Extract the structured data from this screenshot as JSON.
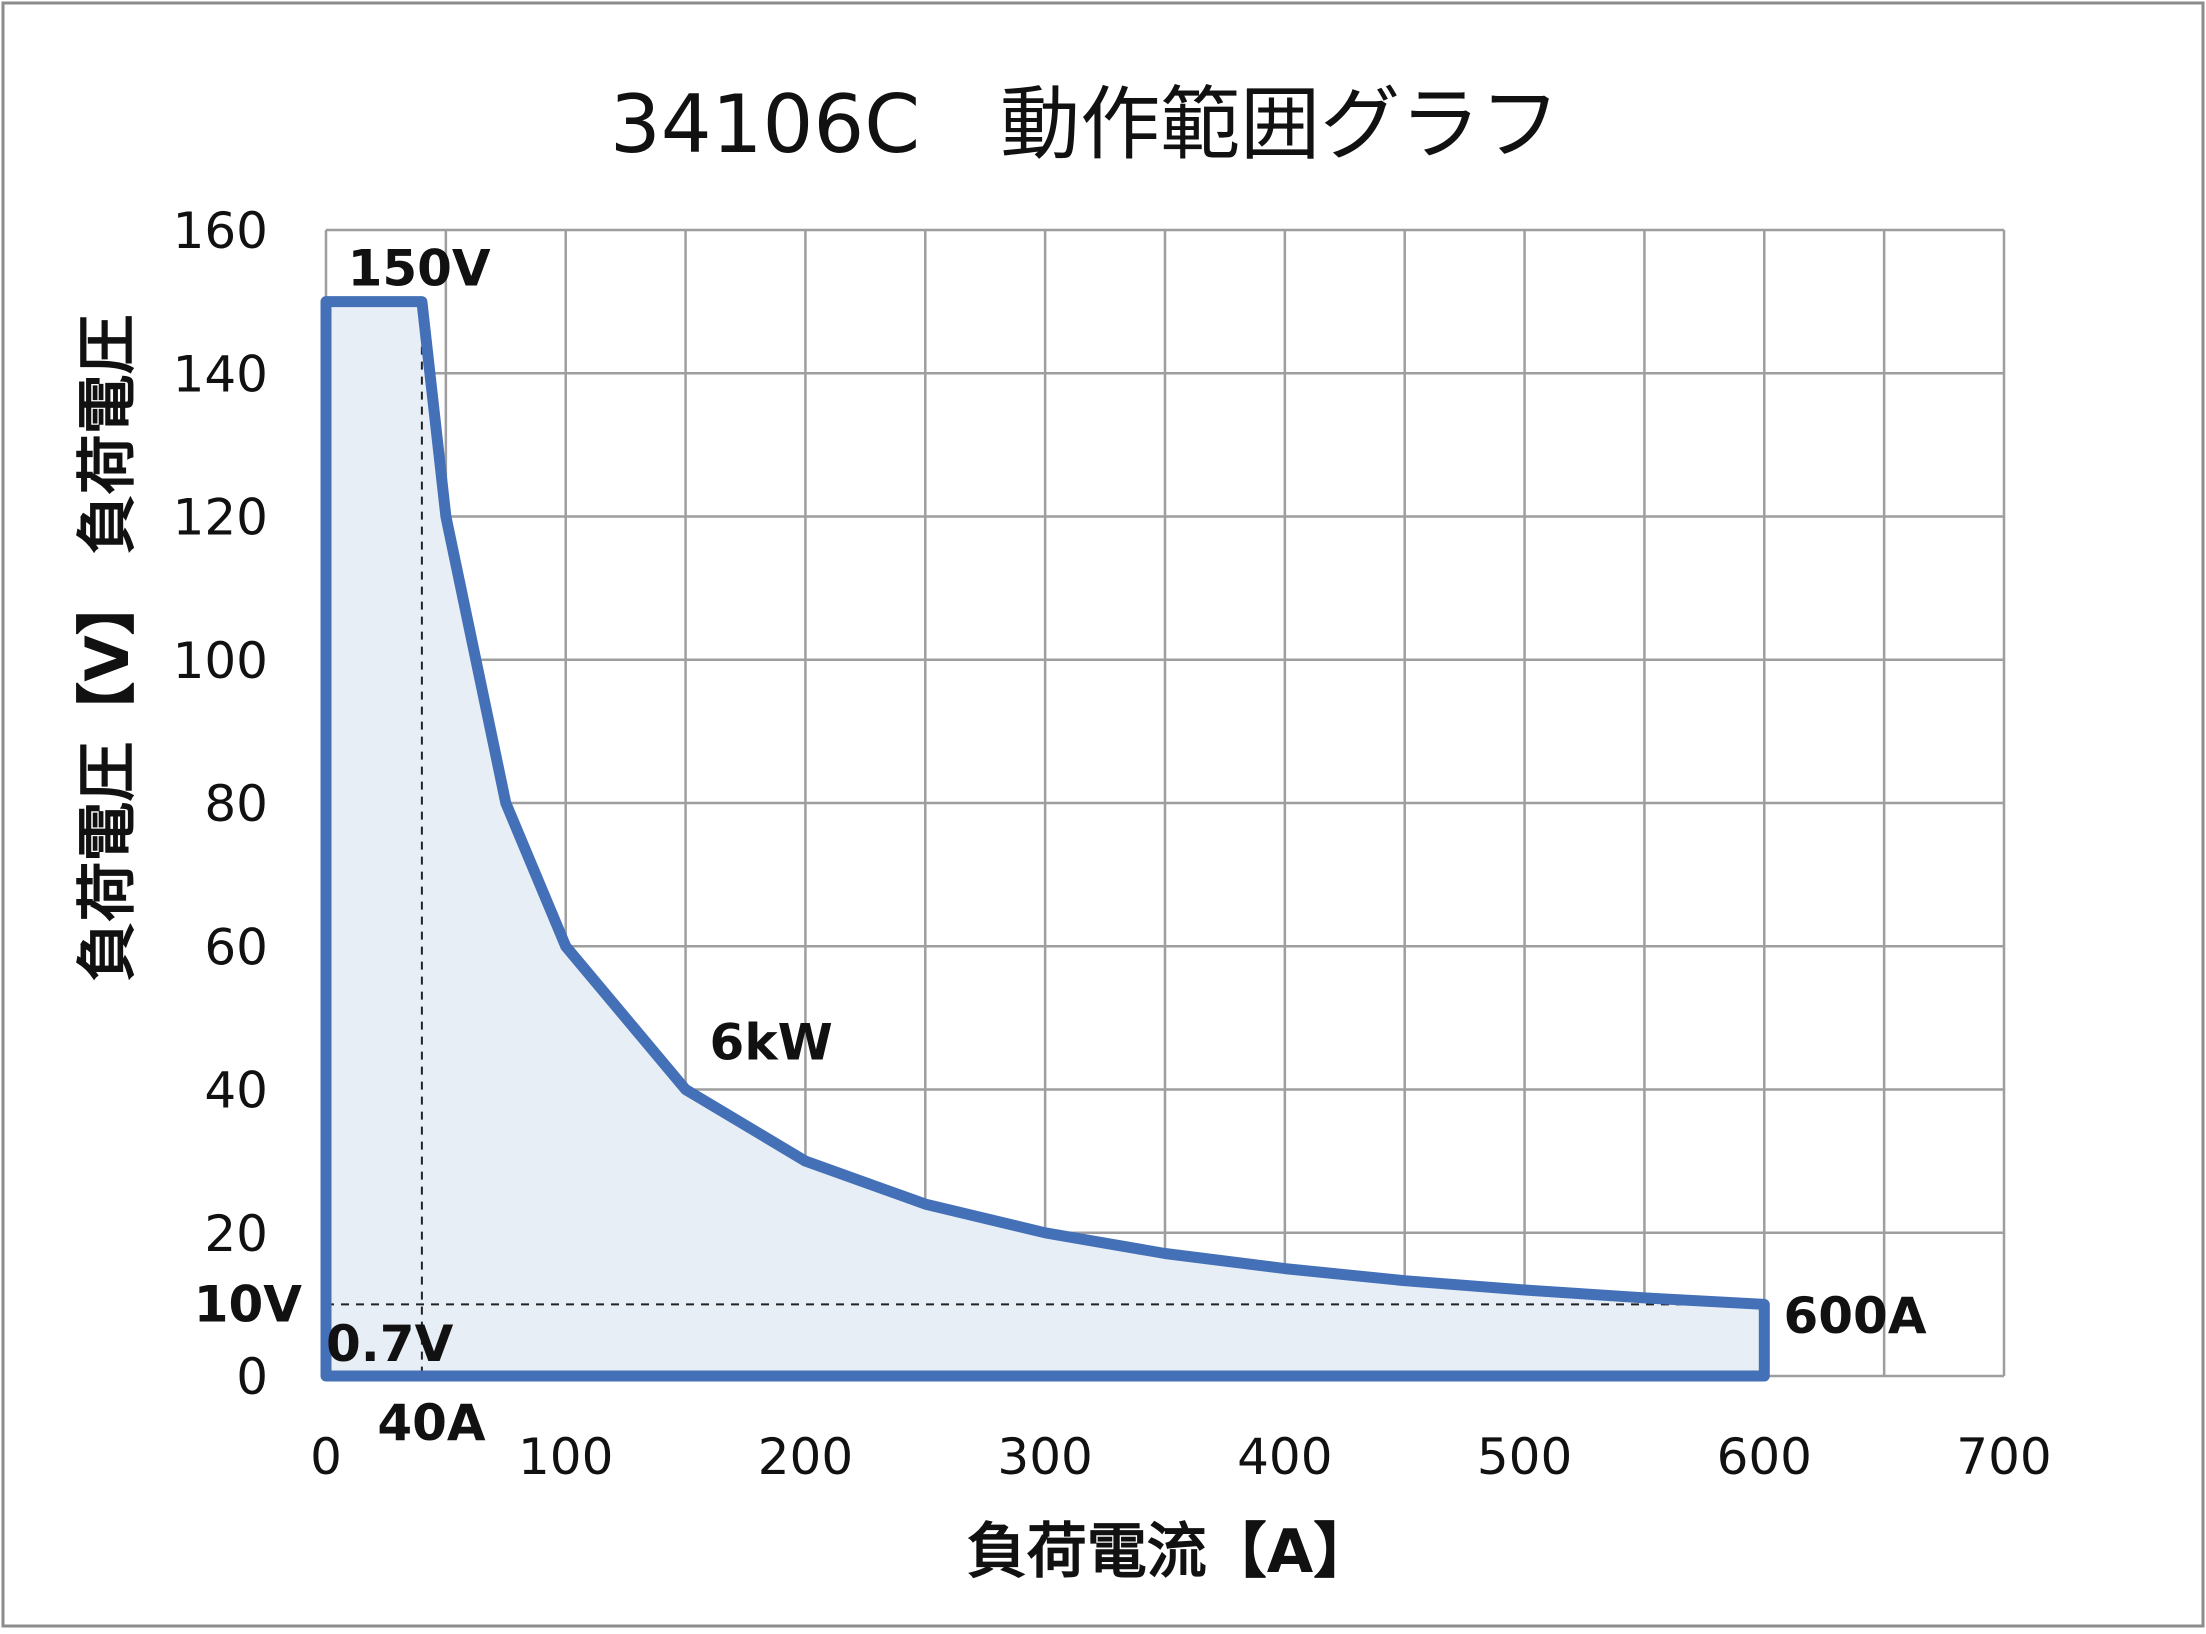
{
  "chart_data": {
    "type": "area",
    "title": "34106C　動作範囲グラフ",
    "xlabel": "負荷電流【A】",
    "ylabel": "負荷電圧【V】 負荷電圧",
    "xlim": [
      0,
      700
    ],
    "ylim": [
      0,
      160
    ],
    "x_ticks": [
      0,
      100,
      200,
      300,
      400,
      500,
      600,
      700
    ],
    "y_ticks": [
      0,
      20,
      40,
      60,
      80,
      100,
      120,
      140,
      160
    ],
    "grid": true,
    "legend": "none",
    "series": [
      {
        "name": "",
        "color": "#4470B8",
        "fill": "#E8EEF6",
        "x": [
          0,
          0,
          40,
          50,
          75,
          100,
          150,
          200,
          250,
          300,
          350,
          400,
          450,
          500,
          550,
          600,
          600
        ],
        "y": [
          0,
          150,
          150,
          120,
          80,
          60,
          40,
          30,
          24,
          20,
          17.1,
          15,
          13.3,
          12,
          10.9,
          10,
          0
        ]
      }
    ],
    "reference_lines": [
      {
        "type": "vertical",
        "x": 40,
        "style": "dashed"
      },
      {
        "type": "horizontal",
        "y": 10,
        "style": "dashed"
      }
    ],
    "annotations": [
      {
        "text": "150V",
        "x": 40,
        "y": 150
      },
      {
        "text": "6kW",
        "x": 175,
        "y": 42
      },
      {
        "text": "600A",
        "x": 600,
        "y": 10
      },
      {
        "text": "10V",
        "x": 0,
        "y": 10
      },
      {
        "text": "0.7V",
        "x": 0,
        "y": 0.7
      },
      {
        "text": "40A",
        "x": 40,
        "y": 0
      }
    ]
  }
}
